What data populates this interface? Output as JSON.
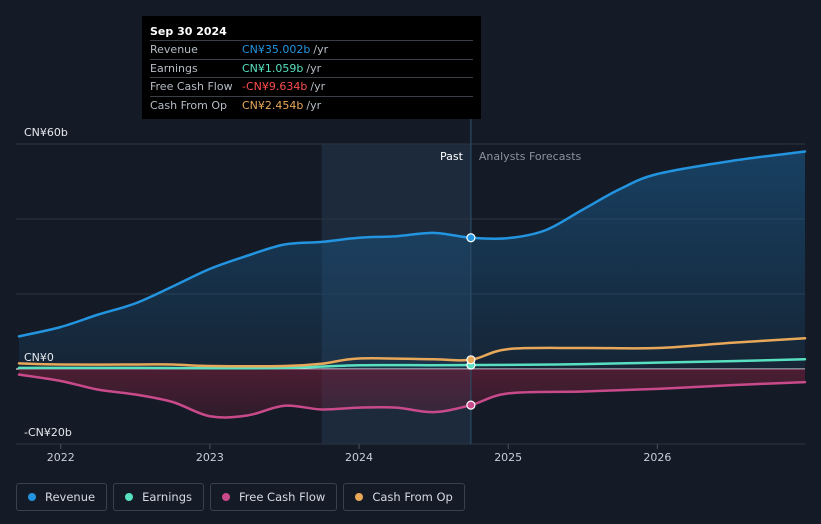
{
  "tooltip": {
    "date": "Sep 30 2024",
    "rows": [
      {
        "label": "Revenue",
        "value": "CN¥35.002b",
        "unit": "/yr",
        "color": "#2394df"
      },
      {
        "label": "Earnings",
        "value": "CN¥1.059b",
        "unit": "/yr",
        "color": "#58e0c0"
      },
      {
        "label": "Free Cash Flow",
        "value": "-CN¥9.634b",
        "unit": "/yr",
        "color": "#ff4d4d"
      },
      {
        "label": "Cash From Op",
        "value": "CN¥2.454b",
        "unit": "/yr",
        "color": "#e8a85a"
      }
    ]
  },
  "legend": [
    {
      "label": "Revenue",
      "color": "#2394df"
    },
    {
      "label": "Earnings",
      "color": "#58e0c0"
    },
    {
      "label": "Free Cash Flow",
      "color": "#c94a8b"
    },
    {
      "label": "Cash From Op",
      "color": "#e8a85a"
    }
  ],
  "chart_data": {
    "type": "line",
    "period_labels": {
      "past": "Past",
      "forecast": "Analysts Forecasts"
    },
    "y_tick_labels": [
      "CN¥60b",
      "CN¥0",
      "-CN¥20b"
    ],
    "ylim": [
      -20,
      60
    ],
    "x_tick_labels": [
      "2022",
      "2023",
      "2024",
      "2025",
      "2026"
    ],
    "xlim": [
      2021.7,
      2026.99
    ],
    "grid": true,
    "split_x": 2024.75,
    "highlight_start_x": 2023.75,
    "series": [
      {
        "name": "Revenue",
        "color": "#2394df",
        "points": [
          [
            2021.72,
            8.7
          ],
          [
            2022.0,
            11.2
          ],
          [
            2022.25,
            14.5
          ],
          [
            2022.5,
            17.5
          ],
          [
            2022.75,
            22.0
          ],
          [
            2023.0,
            26.7
          ],
          [
            2023.25,
            30.2
          ],
          [
            2023.5,
            33.2
          ],
          [
            2023.75,
            33.9
          ],
          [
            2024.0,
            35.0
          ],
          [
            2024.25,
            35.4
          ],
          [
            2024.5,
            36.3
          ],
          [
            2024.75,
            35.0
          ],
          [
            2025.0,
            34.9
          ],
          [
            2025.25,
            37.0
          ],
          [
            2025.5,
            42.5
          ],
          [
            2025.75,
            48.0
          ],
          [
            2026.0,
            52.0
          ],
          [
            2026.5,
            55.5
          ],
          [
            2026.99,
            58.0
          ]
        ]
      },
      {
        "name": "Earnings",
        "color": "#58e0c0",
        "points": [
          [
            2021.72,
            0.3
          ],
          [
            2022.0,
            0.3
          ],
          [
            2022.5,
            0.3
          ],
          [
            2023.0,
            0.2
          ],
          [
            2023.5,
            0.3
          ],
          [
            2024.0,
            1.0
          ],
          [
            2024.5,
            1.0
          ],
          [
            2024.75,
            1.059
          ],
          [
            2025.0,
            1.1
          ],
          [
            2025.5,
            1.3
          ],
          [
            2026.0,
            1.7
          ],
          [
            2026.5,
            2.1
          ],
          [
            2026.99,
            2.6
          ]
        ]
      },
      {
        "name": "Free Cash Flow",
        "color": "#c94a8b",
        "points": [
          [
            2021.72,
            -1.5
          ],
          [
            2022.0,
            -3.2
          ],
          [
            2022.25,
            -5.5
          ],
          [
            2022.5,
            -6.8
          ],
          [
            2022.75,
            -8.8
          ],
          [
            2023.0,
            -12.6
          ],
          [
            2023.25,
            -12.4
          ],
          [
            2023.5,
            -9.8
          ],
          [
            2023.75,
            -10.8
          ],
          [
            2024.0,
            -10.3
          ],
          [
            2024.25,
            -10.3
          ],
          [
            2024.5,
            -11.5
          ],
          [
            2024.75,
            -9.634
          ],
          [
            2025.0,
            -6.5
          ],
          [
            2025.5,
            -6.0
          ],
          [
            2026.0,
            -5.3
          ],
          [
            2026.5,
            -4.3
          ],
          [
            2026.99,
            -3.5
          ]
        ]
      },
      {
        "name": "Cash From Op",
        "color": "#e8a85a",
        "points": [
          [
            2021.72,
            1.5
          ],
          [
            2022.0,
            1.2
          ],
          [
            2022.5,
            1.2
          ],
          [
            2022.75,
            1.2
          ],
          [
            2023.0,
            0.8
          ],
          [
            2023.5,
            0.8
          ],
          [
            2023.75,
            1.4
          ],
          [
            2024.0,
            2.8
          ],
          [
            2024.5,
            2.6
          ],
          [
            2024.75,
            2.454
          ],
          [
            2025.0,
            5.3
          ],
          [
            2025.5,
            5.6
          ],
          [
            2026.0,
            5.6
          ],
          [
            2026.5,
            7.0
          ],
          [
            2026.99,
            8.2
          ]
        ]
      }
    ]
  }
}
